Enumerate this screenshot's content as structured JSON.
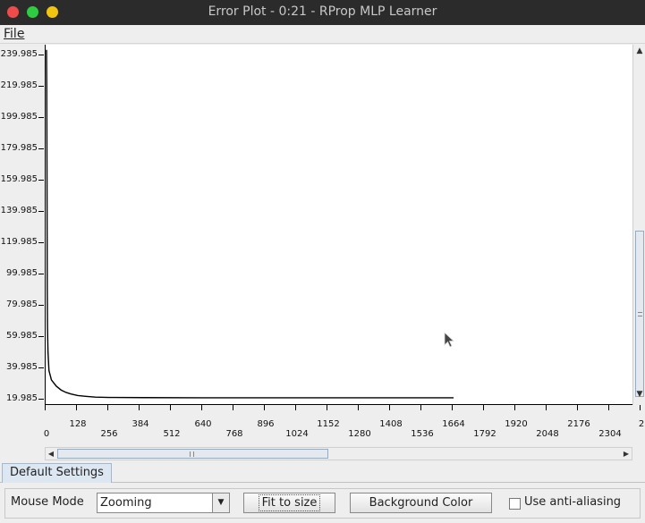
{
  "window": {
    "title": "Error Plot - 0:21 - RProp MLP Learner"
  },
  "menu": {
    "file_label": "File"
  },
  "chart_data": {
    "type": "line",
    "title": "",
    "xlabel": "",
    "ylabel": "",
    "yticks": [
      "239.985",
      "219.985",
      "199.985",
      "179.985",
      "159.985",
      "139.985",
      "119.985",
      "99.985",
      "79.985",
      "59.985",
      "39.985",
      "19.985"
    ],
    "xticks": [
      "0",
      "128",
      "256",
      "384",
      "512",
      "640",
      "768",
      "896",
      "1024",
      "1152",
      "1280",
      "1408",
      "1536",
      "1664",
      "1792",
      "1920",
      "2048",
      "2176",
      "2304",
      "2"
    ],
    "ylim": [
      19.985,
      239.985
    ],
    "xlim": [
      0,
      2358
    ],
    "series": [
      {
        "x": [
          0,
          1,
          2,
          3,
          4,
          6,
          10,
          20,
          40,
          60,
          80,
          100,
          128,
          160,
          200,
          256,
          400,
          640,
          1024,
          1664
        ],
        "values": [
          243,
          220,
          160,
          90,
          66,
          50,
          38,
          32,
          28,
          25.5,
          24,
          23,
          22,
          21.5,
          21,
          20.8,
          20.7,
          20.6,
          20.6,
          20.6
        ]
      }
    ],
    "color": "#000000"
  },
  "tabs": [
    {
      "label": "Default Settings"
    }
  ],
  "controls": {
    "mouse_mode_label": "Mouse Mode",
    "mouse_mode_value": "Zooming",
    "fit_button": "Fit to size",
    "bg_button": "Background Color",
    "antialias_label": "Use anti-aliasing",
    "antialias_checked": false
  }
}
